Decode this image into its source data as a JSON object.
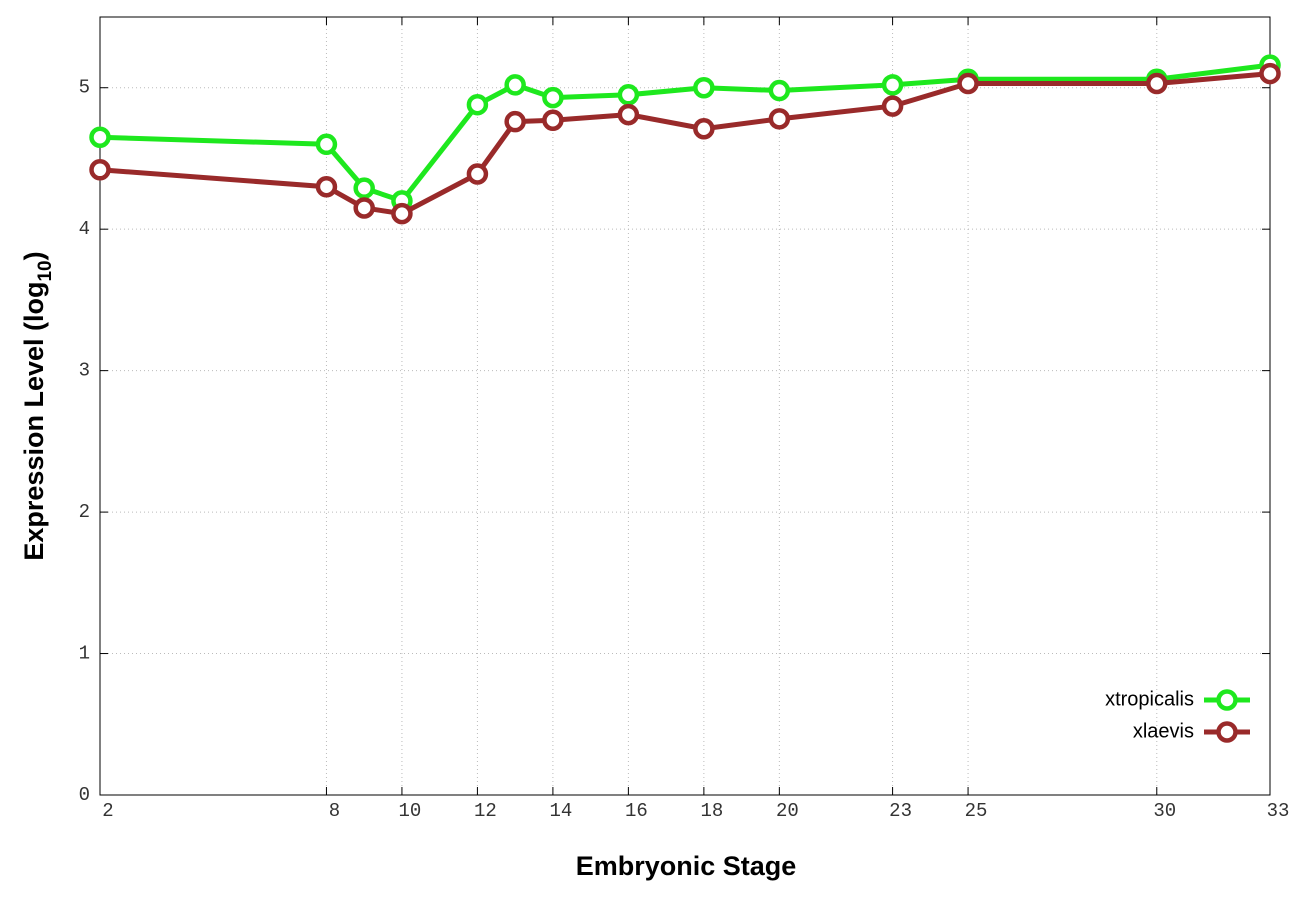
{
  "chart_data": {
    "type": "line",
    "x_label": "Embryonic Stage",
    "y_label": "Expression Level (log",
    "y_label_subscript": "10",
    "y_label_suffix": ")",
    "x": [
      2,
      8,
      9,
      10,
      12,
      13,
      14,
      16,
      18,
      20,
      23,
      25,
      30,
      33
    ],
    "series": [
      {
        "name": "xtropicalis",
        "color": "#1ee81e",
        "values": [
          4.65,
          4.6,
          4.29,
          4.2,
          4.88,
          5.02,
          4.93,
          4.95,
          5.0,
          4.98,
          5.02,
          5.06,
          5.06,
          5.16
        ]
      },
      {
        "name": "xlaevis",
        "color": "#992a2a",
        "values": [
          4.42,
          4.3,
          4.15,
          4.11,
          4.39,
          4.76,
          4.77,
          4.81,
          4.71,
          4.78,
          4.87,
          5.03,
          5.03,
          5.1
        ]
      }
    ],
    "xlim": [
      2,
      33
    ],
    "xticks": [
      2,
      8,
      10,
      12,
      14,
      16,
      18,
      20,
      23,
      25,
      30,
      33
    ],
    "ylim": [
      0,
      5.5
    ],
    "yticks": [
      0,
      1,
      2,
      3,
      4,
      5
    ],
    "grid": true,
    "legend": "bottom right"
  }
}
